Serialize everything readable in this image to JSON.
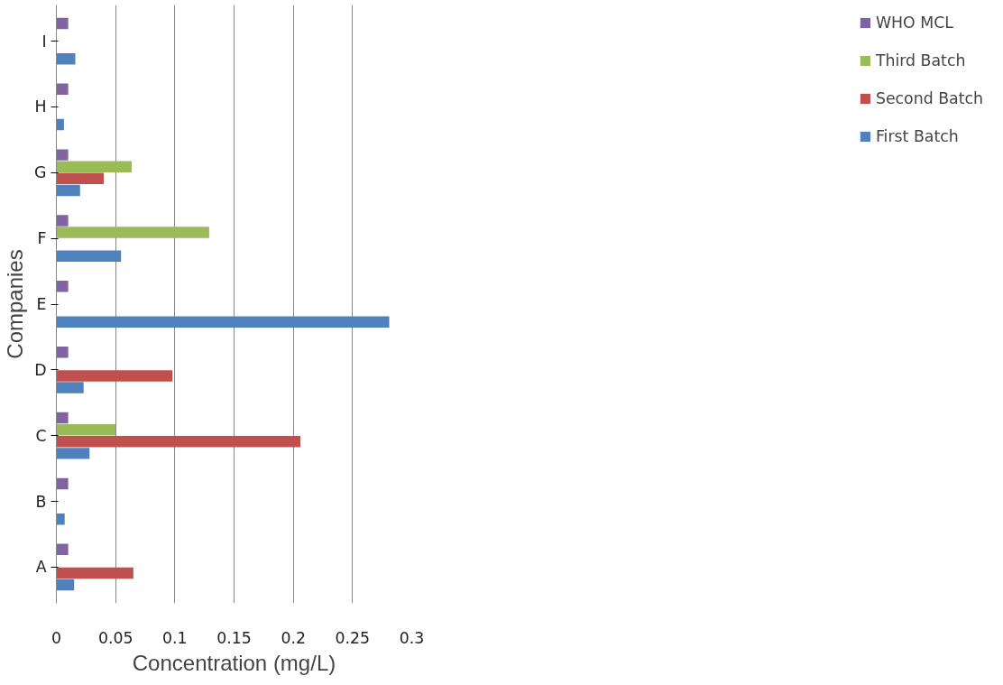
{
  "chart_data": {
    "type": "bar",
    "orientation": "horizontal",
    "xlabel": "Concentration (mg/L)",
    "ylabel": "Companies",
    "categories": [
      "I",
      "H",
      "G",
      "F",
      "E",
      "D",
      "C",
      "B",
      "A"
    ],
    "series": [
      {
        "name": "First Batch",
        "color": "#4f81bd",
        "values": [
          0.016,
          0.0064,
          0.02,
          0.0546,
          0.281,
          0.023,
          0.028,
          0.007,
          0.015
        ]
      },
      {
        "name": "Second Batch",
        "color": "#c0504d",
        "values": [
          null,
          null,
          0.04,
          null,
          null,
          0.098,
          0.206,
          null,
          0.065
        ]
      },
      {
        "name": "Third Batch",
        "color": "#9bbb59",
        "values": [
          null,
          null,
          0.0636,
          0.129,
          null,
          null,
          0.05,
          null,
          null
        ]
      },
      {
        "name": "WHO MCL",
        "color": "#8064a2",
        "values": [
          0.01,
          0.01,
          0.01,
          0.01,
          0.01,
          0.01,
          0.01,
          0.01,
          0.01
        ]
      }
    ],
    "xlim": [
      0,
      0.3
    ],
    "xticks": [
      0,
      0.05,
      0.1,
      0.15,
      0.2,
      0.25,
      0.3
    ],
    "grid": "x",
    "legend": "right"
  }
}
